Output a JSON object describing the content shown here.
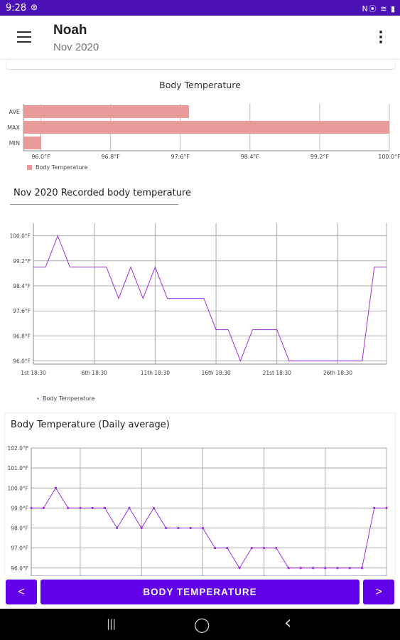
{
  "status_bar": {
    "time": "9:28",
    "sync_icon": "sync-icon",
    "right_icons": "N⦿ ≋ ▮"
  },
  "app_bar": {
    "title": "Noah",
    "subtitle": "Nov 2020",
    "menu_icon": "hamburger-menu-icon",
    "more_icon": "more-vert-icon"
  },
  "colors": {
    "accent": "#6200ea",
    "status_bar": "#4a12b5",
    "bar_fill": "#eb9a9a",
    "line": "#9b30e0"
  },
  "summary_chart": {
    "title": "Body Temperature",
    "legend": "Body Temperature"
  },
  "section": {
    "label": "Nov 2020 Recorded body temperature"
  },
  "recorded_chart": {
    "legend": "Body Temperature"
  },
  "daily_chart": {
    "title": "Body Temperature (Daily average)"
  },
  "chart_data": [
    {
      "type": "bar",
      "orientation": "horizontal",
      "title": "Body Temperature",
      "categories": [
        "AVE",
        "MAX",
        "MIN"
      ],
      "series": [
        {
          "name": "Body Temperature",
          "values": [
            97.7,
            100.0,
            96.0
          ]
        }
      ],
      "xlim": [
        95.8,
        100.0
      ],
      "x_ticks": [
        "96.0°F",
        "96.8°F",
        "97.6°F",
        "98.4°F",
        "99.2°F",
        "100.0°F"
      ],
      "legend_position": "bottom-left",
      "grid": true
    },
    {
      "type": "line",
      "title": "Nov 2020 Recorded body temperature",
      "x_ticks": [
        "1st 18:30",
        "6th 18:30",
        "11th 18:30",
        "16th 18:30",
        "21st 18:30",
        "26th 18:30"
      ],
      "y_ticks": [
        "96.0°F",
        "96.8°F",
        "97.6°F",
        "98.4°F",
        "99.2°F",
        "100.0°F"
      ],
      "ylim": [
        95.9,
        100.4
      ],
      "xlim": [
        1,
        30
      ],
      "series": [
        {
          "name": "Body Temperature",
          "x": [
            1,
            2,
            3,
            4,
            5,
            6,
            7,
            8,
            9,
            10,
            11,
            12,
            13,
            14,
            15,
            16,
            17,
            18,
            19,
            20,
            21,
            22,
            23,
            24,
            25,
            26,
            27,
            28,
            29,
            30
          ],
          "values": [
            99.0,
            99.0,
            100.0,
            99.0,
            99.0,
            99.0,
            99.0,
            98.0,
            99.0,
            98.0,
            99.0,
            98.0,
            98.0,
            98.0,
            98.0,
            97.0,
            97.0,
            96.0,
            97.0,
            97.0,
            97.0,
            96.0,
            96.0,
            96.0,
            96.0,
            96.0,
            96.0,
            96.0,
            99.0,
            99.0
          ]
        }
      ],
      "legend_position": "bottom-left",
      "grid": true
    },
    {
      "type": "line",
      "title": "Body Temperature (Daily average)",
      "y_ticks": [
        "96.0°F",
        "97.0°F",
        "98.0°F",
        "99.0°F",
        "100.0°F",
        "101.0°F",
        "102.0°F"
      ],
      "ylim": [
        95.6,
        102.0
      ],
      "xlim": [
        1,
        30
      ],
      "series": [
        {
          "name": "Body Temperature",
          "x": [
            1,
            2,
            3,
            4,
            5,
            6,
            7,
            8,
            9,
            10,
            11,
            12,
            13,
            14,
            15,
            16,
            17,
            18,
            19,
            20,
            21,
            22,
            23,
            24,
            25,
            26,
            27,
            28,
            29,
            30
          ],
          "values": [
            99.0,
            99.0,
            100.0,
            99.0,
            99.0,
            99.0,
            99.0,
            98.0,
            99.0,
            98.0,
            99.0,
            98.0,
            98.0,
            98.0,
            98.0,
            97.0,
            97.0,
            96.0,
            97.0,
            97.0,
            97.0,
            96.0,
            96.0,
            96.0,
            96.0,
            96.0,
            96.0,
            96.0,
            99.0,
            99.0
          ]
        }
      ],
      "grid": true
    }
  ],
  "bottom_nav": {
    "prev_label": "<",
    "main_label": "BODY TEMPERATURE",
    "next_label": ">"
  },
  "system_nav": {
    "recents": "|||",
    "home": "◯",
    "back": "‹"
  }
}
